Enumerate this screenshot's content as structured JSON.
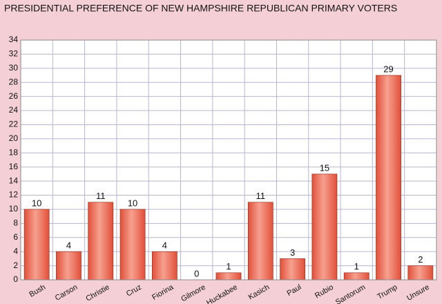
{
  "chart_data": {
    "type": "bar",
    "title": "PRESIDENTIAL PREFERENCE OF NEW HAMPSHIRE REPUBLICAN PRIMARY VOTERS",
    "categories": [
      "Bush",
      "Carson",
      "Christie",
      "Cruz",
      "Fiorina",
      "Gilmore",
      "Huckabee",
      "Kasich",
      "Paul",
      "Rubio",
      "Santorum",
      "Trump",
      "Unsure"
    ],
    "values": [
      10,
      4,
      11,
      10,
      4,
      0,
      1,
      11,
      3,
      15,
      1,
      29,
      2
    ],
    "color": "#e0503a",
    "ylim": [
      0,
      34
    ],
    "yticks": [
      0,
      2,
      4,
      6,
      8,
      10,
      12,
      14,
      16,
      18,
      20,
      22,
      24,
      26,
      28,
      30,
      32,
      34
    ],
    "grid": true
  }
}
